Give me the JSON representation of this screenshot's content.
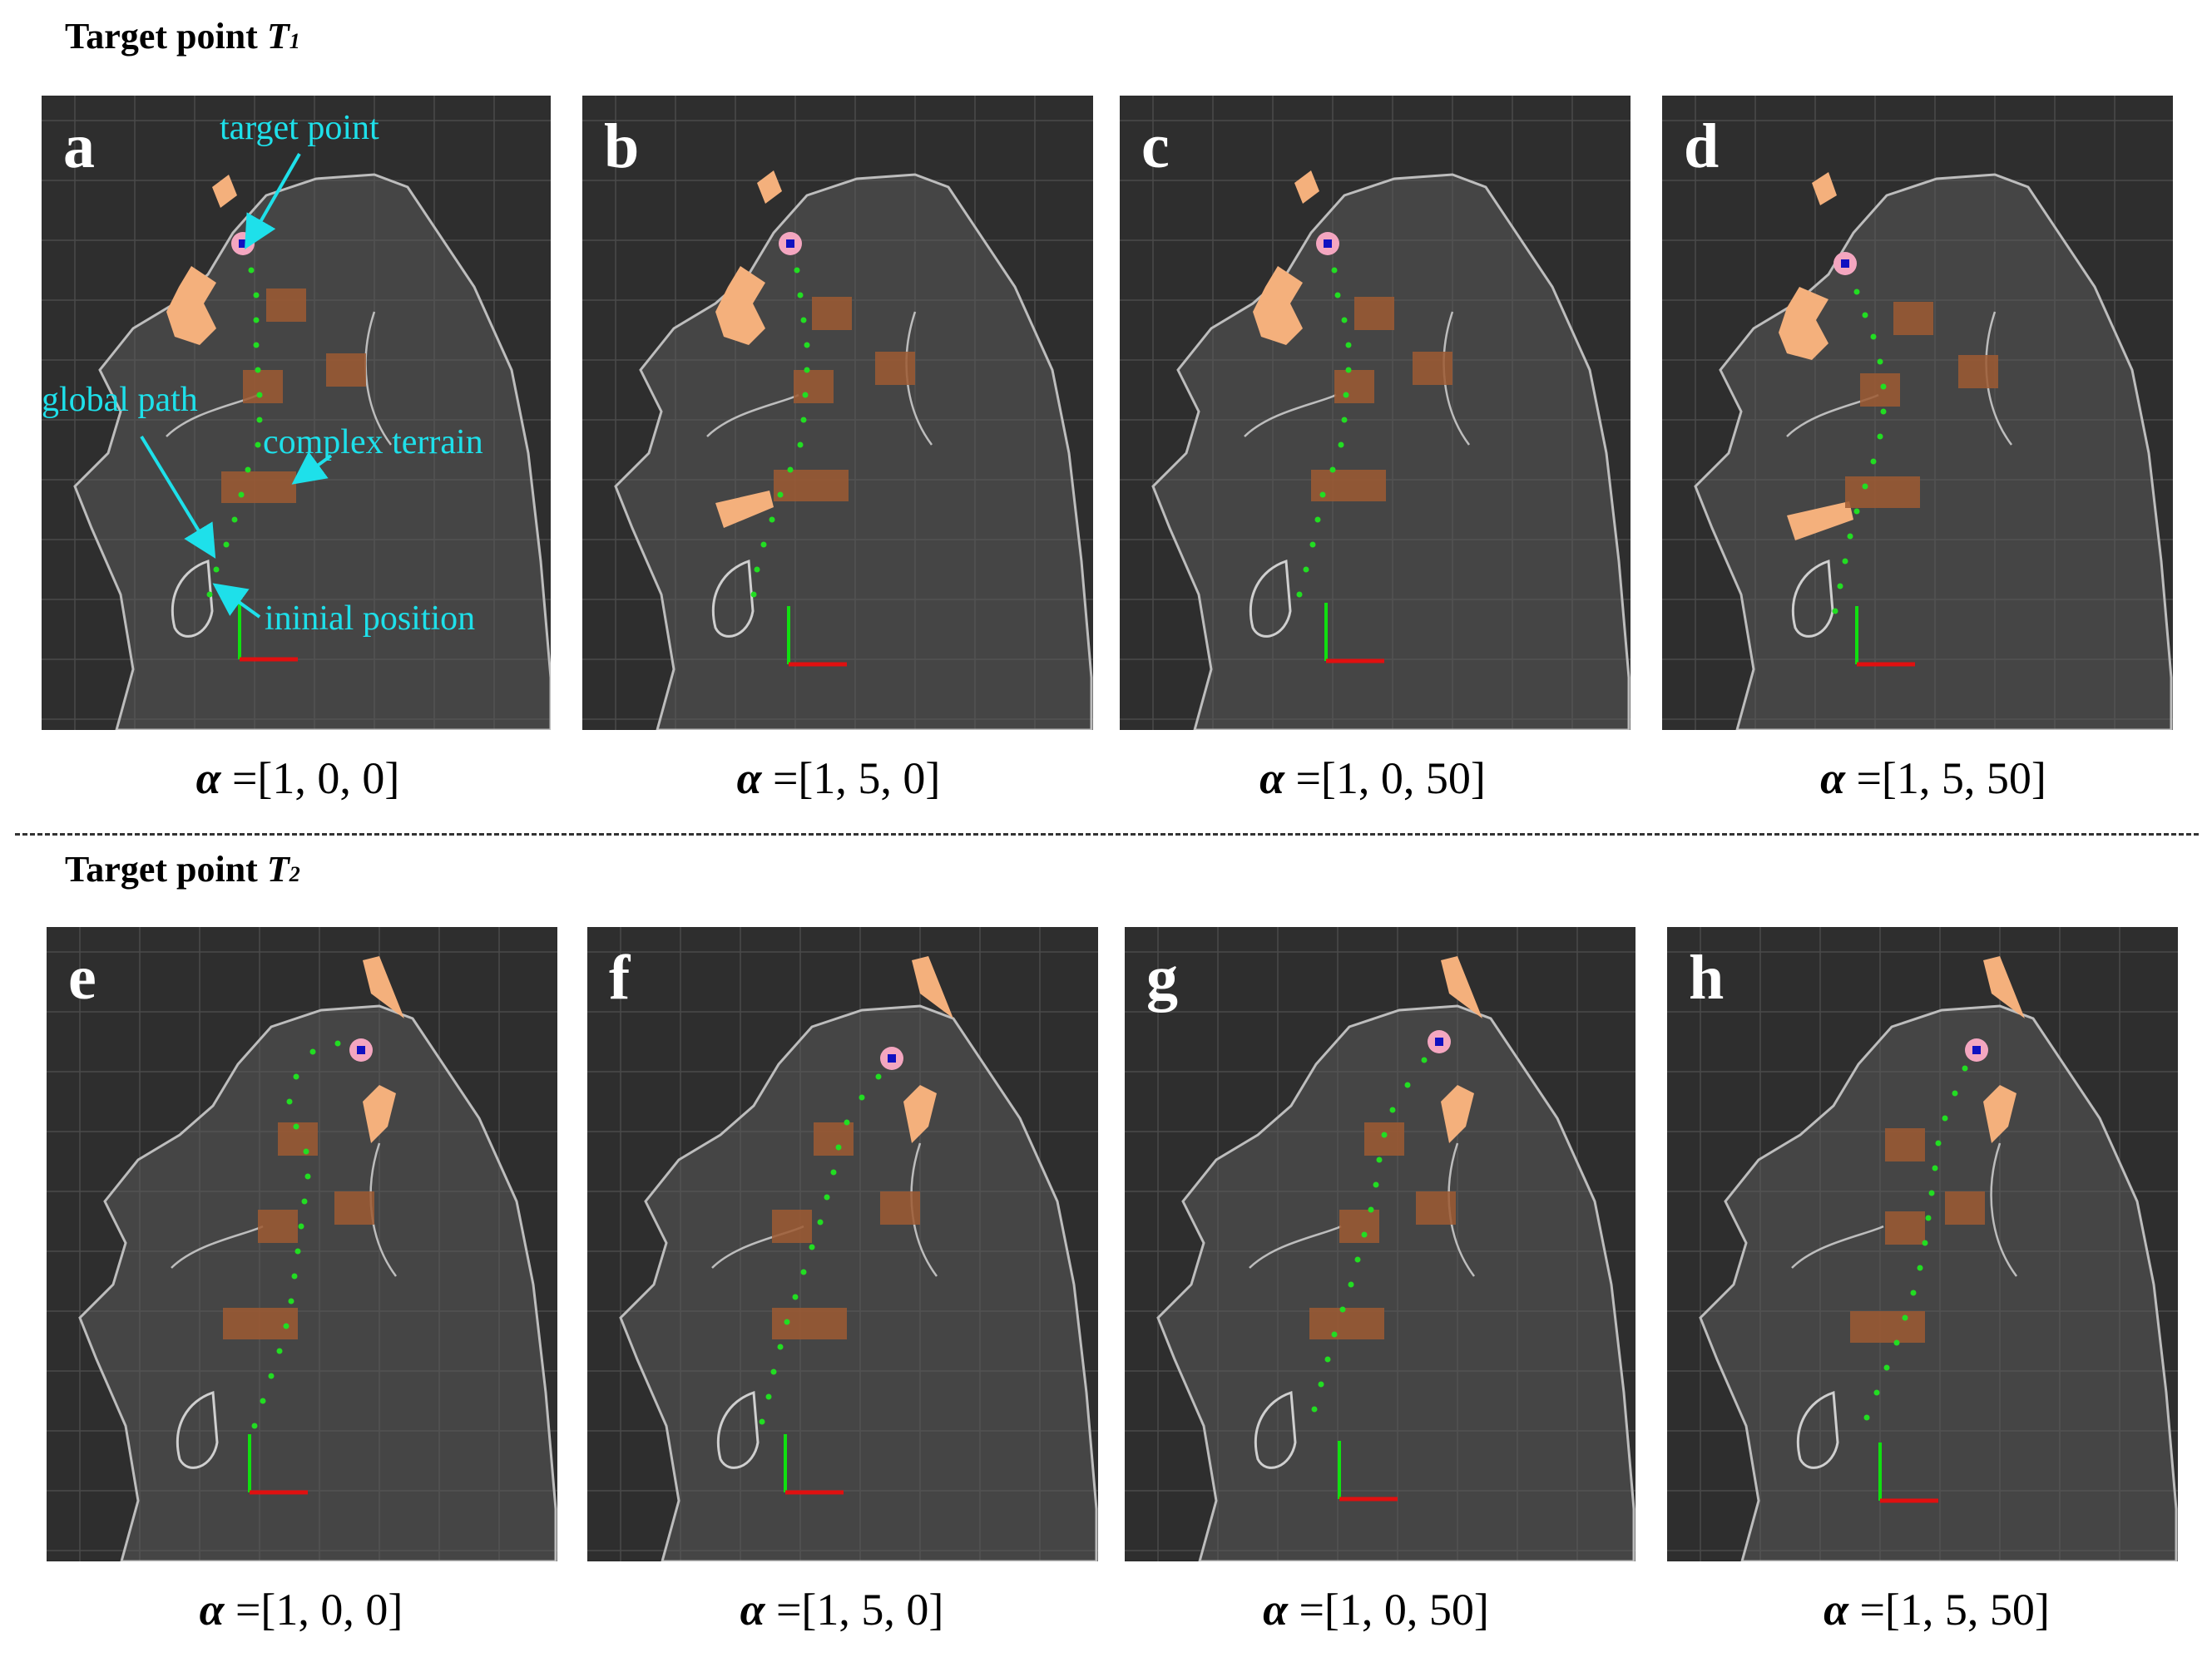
{
  "sections": [
    {
      "label": "Target point ",
      "sym": "T",
      "sub": "1"
    },
    {
      "label": "Target point ",
      "sym": "T",
      "sub": "2"
    }
  ],
  "annotations": {
    "target_point": "target point",
    "global_path": "global path",
    "complex_terrain": "complex terrain",
    "initial_position": "ininial position"
  },
  "panels": [
    {
      "letter": "a",
      "alpha_symbol": "α",
      "caption": " =[1, 0, 0]"
    },
    {
      "letter": "b",
      "alpha_symbol": "α",
      "caption": " =[1, 5, 0]"
    },
    {
      "letter": "c",
      "alpha_symbol": "α",
      "caption": " =[1, 0, 50]"
    },
    {
      "letter": "d",
      "alpha_symbol": "α",
      "caption": " =[1, 5, 50]"
    },
    {
      "letter": "e",
      "alpha_symbol": "α",
      "caption": " =[1, 0, 0]"
    },
    {
      "letter": "f",
      "alpha_symbol": "α",
      "caption": " =[1, 5, 0]"
    },
    {
      "letter": "g",
      "alpha_symbol": "α",
      "caption": " =[1, 0, 50]"
    },
    {
      "letter": "h",
      "alpha_symbol": "α",
      "caption": " =[1, 5, 50]"
    }
  ],
  "colors": {
    "background": "#2e2e2e",
    "grid": "#4a4a4a",
    "map": "#8e8e8e",
    "obstacle": "#f4b07c",
    "terrain": "#9e5a32",
    "path": "#22dd22",
    "target_ring": "#f4a6c0",
    "target_core": "#1010c0",
    "annotation": "#1ee0ea",
    "axis_x": "#e01010",
    "axis_y": "#10e010"
  }
}
